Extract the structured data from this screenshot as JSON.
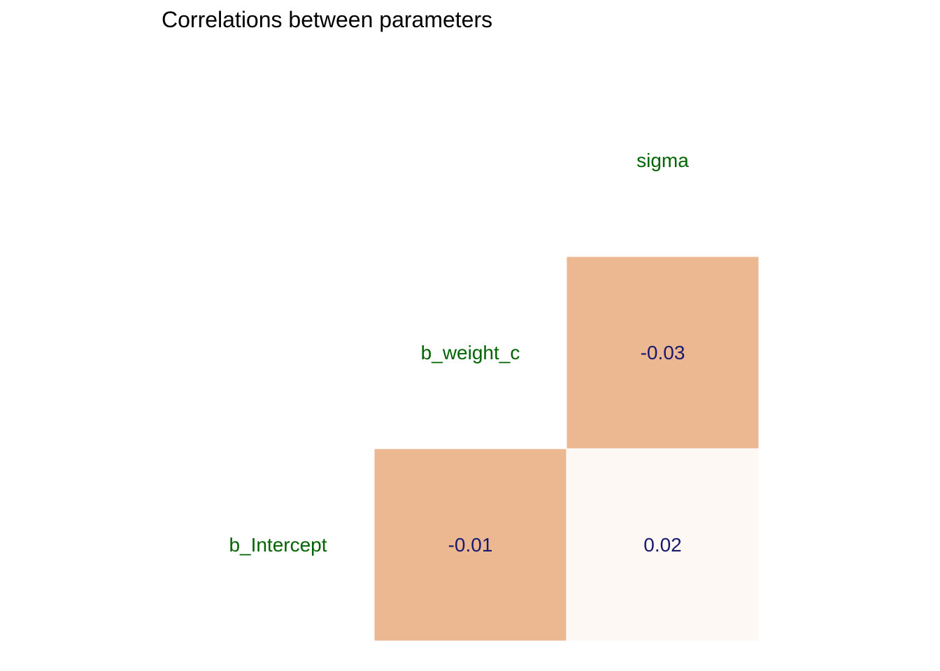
{
  "title": "Correlations between parameters",
  "colors": {
    "label": "#006400",
    "value_text": "#191970",
    "cell_strong": "#ECB892",
    "cell_weak": "#FDF8F4",
    "background": "#FFFFFF"
  },
  "chart_data": {
    "type": "heatmap",
    "title": "Correlations between parameters",
    "variables": [
      "b_Intercept",
      "b_weight_c",
      "sigma"
    ],
    "layout": "lower-triangle",
    "cells": [
      {
        "row": "b_Intercept",
        "col": "b_weight_c",
        "value": -0.01,
        "label": "-0.01",
        "color": "#ECB892"
      },
      {
        "row": "b_Intercept",
        "col": "sigma",
        "value": 0.02,
        "label": "0.02",
        "color": "#FDF8F4"
      },
      {
        "row": "b_weight_c",
        "col": "sigma",
        "value": -0.03,
        "label": "-0.03",
        "color": "#ECB892"
      }
    ],
    "grid": false,
    "legend": "none"
  }
}
